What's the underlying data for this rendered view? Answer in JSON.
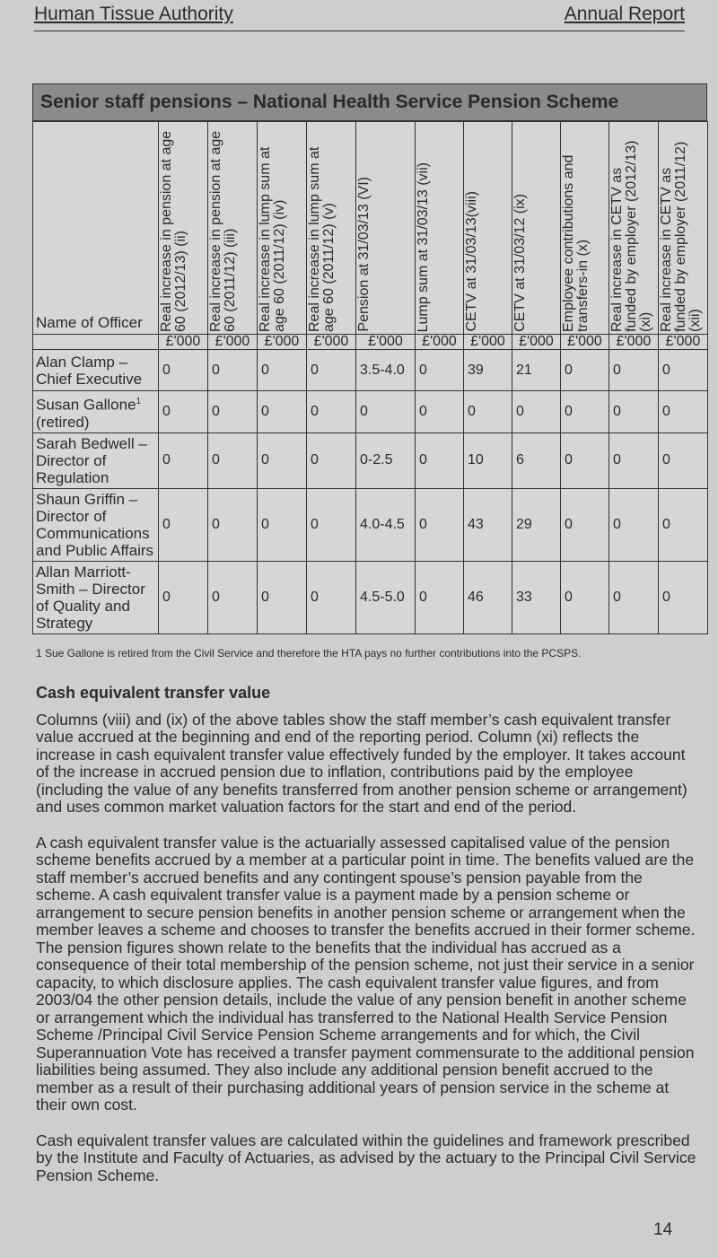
{
  "header": {
    "left": "Human Tissue Authority",
    "right": "Annual Report"
  },
  "table": {
    "title": "Senior staff pensions – National Health Service Pension Scheme",
    "columns": [
      "Name of Officer",
      "Real increase in pension at age 60 (2012/13) (ii)",
      "Real increase in pension at age 60 (2011/12) (iii)",
      "Real increase in lump sum at age 60 (2011/12) (iv)",
      "Real increase in lump sum at age 60 (2011/12) (v)",
      "Pension at 31/03/13 (VI)",
      "Lump sum at 31/03/13 (vii)",
      "CETV at 31/03/13(viii)",
      "CETV at 31/03/12 (ix)",
      "Employee contributions and transfers-in (x)",
      "Real increase in CETV as funded by employer (2012/13) (xi)",
      "Real increase in CETV as funded by employer (2011/12) (xii)"
    ],
    "unit": "£'000",
    "rows": [
      {
        "name": "Alan Clamp – Chief Executive",
        "values": [
          "0",
          "0",
          "0",
          "0",
          "3.5-4.0",
          "0",
          "39",
          "21",
          "0",
          "0",
          "0"
        ]
      },
      {
        "name": "Susan Gallone",
        "sup": "1",
        "name2": "(retired)",
        "values": [
          "0",
          "0",
          "0",
          "0",
          "0",
          "0",
          "0",
          "0",
          "0",
          "0",
          "0"
        ]
      },
      {
        "name": "Sarah Bedwell – Director of Regulation",
        "values": [
          "0",
          "0",
          "0",
          "0",
          "0-2.5",
          "0",
          "10",
          "6",
          "0",
          "0",
          "0"
        ]
      },
      {
        "name": "Shaun Griffin – Director of Communications and Public Affairs",
        "values": [
          "0",
          "0",
          "0",
          "0",
          "4.0-4.5",
          "0",
          "43",
          "29",
          "0",
          "0",
          "0"
        ]
      },
      {
        "name": "Allan Marriott-Smith – Director of Quality and Strategy",
        "values": [
          "0",
          "0",
          "0",
          "0",
          "4.5-5.0",
          "0",
          "46",
          "33",
          "0",
          "0",
          "0"
        ]
      }
    ]
  },
  "footnote": "1 Sue Gallone is retired from the Civil Service and therefore the HTA pays no further contributions into the PCSPS.",
  "section_title": "Cash equivalent transfer value",
  "paragraphs": [
    "Columns (viii) and (ix) of the above tables show the staff member’s cash equivalent transfer value accrued at the beginning and end of the reporting period. Column (xi) reflects the increase in cash equivalent transfer value effectively funded by the employer. It takes account of the increase in accrued pension due to inflation, contributions paid by the employee (including the value of any benefits transferred from another pension scheme or arrangement) and uses common market valuation factors for the start and end of the period.",
    "A cash equivalent transfer value is the actuarially assessed capitalised value of the pension scheme benefits accrued by a member at a particular point in time. The benefits valued are the staff member’s accrued benefits and any contingent spouse’s pension payable from the scheme. A cash equivalent transfer value is a payment made by a pension scheme or arrangement to secure pension benefits in another pension scheme or arrangement when the member leaves a scheme and chooses to transfer the benefits accrued in their former scheme. The pension figures shown relate to the benefits that the individual has accrued as a consequence of their total membership of the pension scheme, not just their service in a senior capacity, to which disclosure applies. The cash equivalent transfer value figures, and from 2003/04 the other pension details, include the value of any pension benefit in another scheme or arrangement which the individual has transferred to the National Health Service Pension Scheme /Principal Civil Service Pension Scheme arrangements and for which, the Civil Superannuation Vote has received a transfer payment commensurate to the additional pension liabilities being assumed. They also include any additional pension benefit accrued to the member as a result of their purchasing additional years of pension service in the scheme at their own cost.",
    "Cash equivalent transfer values are calculated within the guidelines and framework prescribed by the Institute and Faculty of Actuaries, as advised by the actuary to the Principal Civil Service Pension Scheme."
  ],
  "page_number": "14"
}
